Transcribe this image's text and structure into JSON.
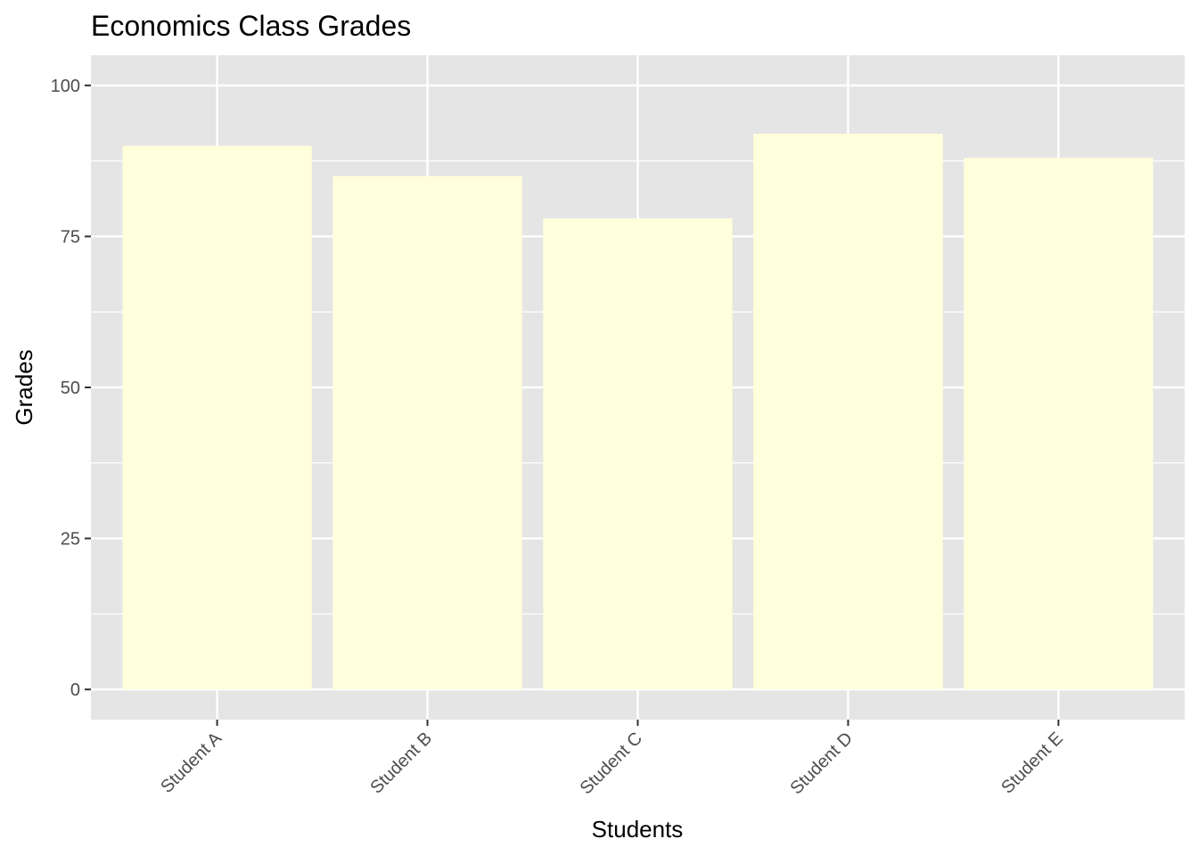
{
  "chart_data": {
    "type": "bar",
    "title": "Economics Class Grades",
    "xlabel": "Students",
    "ylabel": "Grades",
    "categories": [
      "Student A",
      "Student B",
      "Student C",
      "Student D",
      "Student E"
    ],
    "values": [
      90,
      85,
      78,
      92,
      88
    ],
    "ylim": [
      -5,
      105
    ],
    "yticks": [
      0,
      25,
      50,
      75,
      100
    ],
    "grid": true,
    "legend": "none",
    "colors": {
      "bar": "#ffffdc",
      "panel": "#e5e5e5",
      "grid": "#ffffff"
    }
  }
}
